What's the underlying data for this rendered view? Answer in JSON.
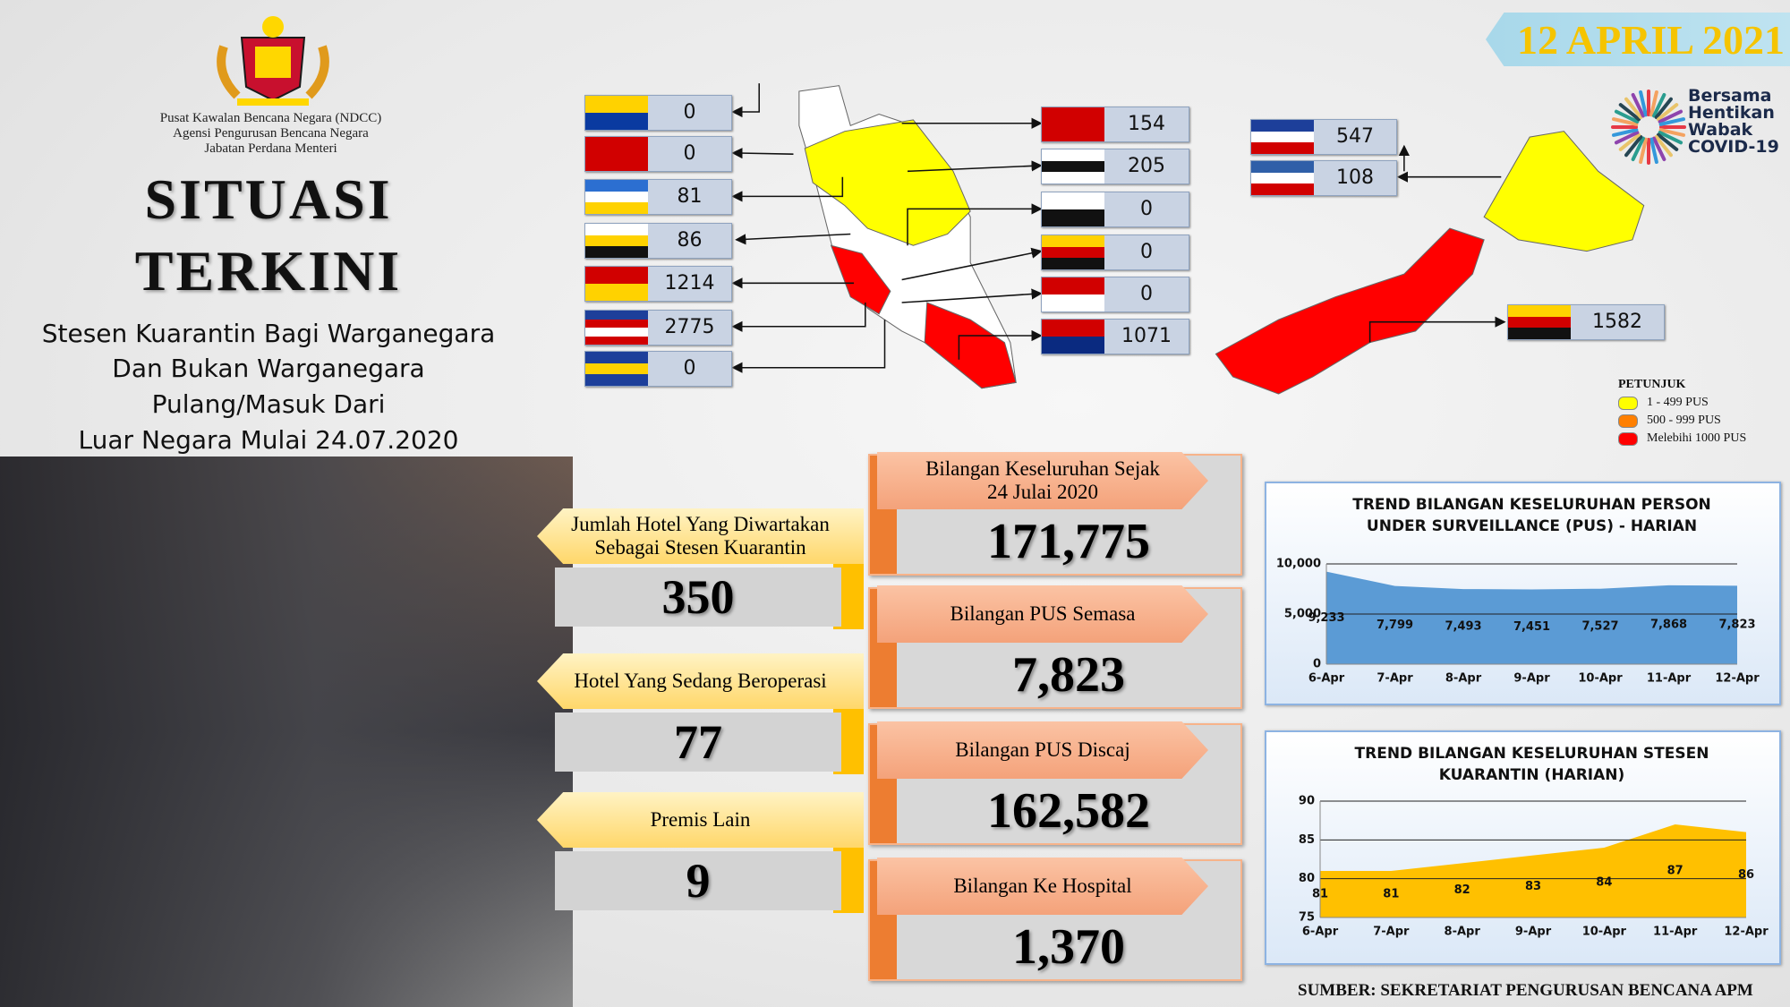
{
  "header": {
    "agency": [
      "Pusat Kawalan Bencana Negara (NDCC)",
      "Agensi Pengurusan Bencana Negara",
      "Jabatan Perdana Menteri"
    ],
    "title": [
      "SITUASI",
      "TERKINI"
    ],
    "subtitle": [
      "Stesen Kuarantin Bagi Warganegara",
      "Dan Bukan Warganegara",
      "Pulang/Masuk Dari",
      "Luar Negara Mulai 24.07.2020"
    ],
    "date": "12 APRIL 2021",
    "campaign": [
      "Bersama",
      "Hentikan",
      "Wabak",
      "COVID-19"
    ]
  },
  "states_west": [
    0,
    0,
    81,
    86,
    1214,
    2775,
    0
  ],
  "states_east_coast": [
    154,
    205,
    0,
    0,
    0,
    1071
  ],
  "states_borneo": [
    547,
    108,
    1582
  ],
  "legend": {
    "title": "PETUNJUK",
    "items": [
      {
        "label": "1 - 499 PUS",
        "color": "#ffff00"
      },
      {
        "label": "500 - 999 PUS",
        "color": "#ff7f00"
      },
      {
        "label": "Melebihi 1000 PUS",
        "color": "#ff0000"
      }
    ]
  },
  "hotels": [
    {
      "label": [
        "Jumlah Hotel Yang Diwartakan",
        "Sebagai Stesen Kuarantin"
      ],
      "value": 350
    },
    {
      "label": [
        "Hotel Yang Sedang Beroperasi"
      ],
      "value": 77
    },
    {
      "label": [
        "Premis Lain"
      ],
      "value": 9
    }
  ],
  "totals": [
    {
      "label": [
        "Bilangan Keseluruhan Sejak",
        "24 Julai 2020"
      ],
      "value": "171,775"
    },
    {
      "label": [
        "Bilangan PUS Semasa"
      ],
      "value": "7,823"
    },
    {
      "label": [
        "Bilangan PUS Discaj"
      ],
      "value": "162,582"
    },
    {
      "label": [
        "Bilangan Ke Hospital"
      ],
      "value": "1,370"
    }
  ],
  "chart_data": [
    {
      "type": "area",
      "title": "TREND BILANGAN KESELURUHAN PERSON UNDER SURVEILLANCE (PUS) - HARIAN",
      "categories": [
        "6-Apr",
        "7-Apr",
        "8-Apr",
        "9-Apr",
        "10-Apr",
        "11-Apr",
        "12-Apr"
      ],
      "values": [
        9233,
        7799,
        7493,
        7451,
        7527,
        7868,
        7823
      ],
      "value_labels": [
        "9,233",
        "7,799",
        "7,493",
        "7,451",
        "7,527",
        "7,868",
        "7,823"
      ],
      "color": "#5b9bd5",
      "ylim": [
        0,
        10000
      ],
      "yticks": [
        0,
        {
          "value": 5000,
          "label": "5,000"
        },
        {
          "value": 10000,
          "label": "10,000"
        }
      ],
      "grid": true
    },
    {
      "type": "area",
      "title": "TREND BILANGAN KESELURUHAN STESEN KUARANTIN (HARIAN)",
      "categories": [
        "6-Apr",
        "7-Apr",
        "8-Apr",
        "9-Apr",
        "10-Apr",
        "11-Apr",
        "12-Apr"
      ],
      "values": [
        81,
        81,
        82,
        83,
        84,
        87,
        86
      ],
      "color": "#ffc000",
      "ylim": [
        75,
        90
      ],
      "yticks": [
        75,
        80,
        85,
        90
      ],
      "grid": true
    }
  ],
  "source": "SUMBER: SEKRETARIAT PENGURUSAN BENCANA APM"
}
